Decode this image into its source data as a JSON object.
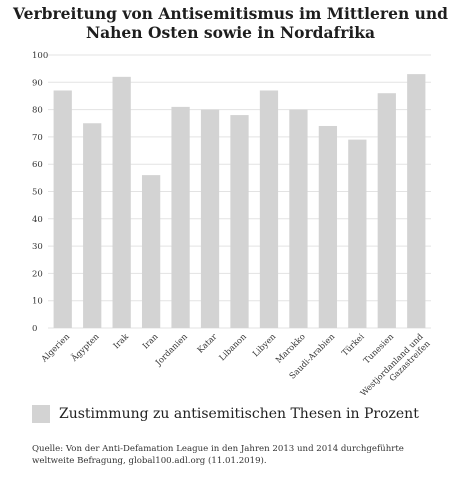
{
  "chart_data": {
    "type": "bar",
    "title_lines": [
      "Verbreitung von Antisemitismus im Mittleren und",
      "Nahen Osten sowie in Nordafrika"
    ],
    "categories": [
      "Algerien",
      "Ägypten",
      "Irak",
      "Iran",
      "Jordanien",
      "Katar",
      "Libanon",
      "Libyen",
      "Marokko",
      "Saudi-Arabien",
      "Türkei",
      "Tunesien",
      "Westjordanland und Gazastreifen"
    ],
    "category_label_lines": [
      [
        "Algerien"
      ],
      [
        "Ägypten"
      ],
      [
        "Irak"
      ],
      [
        "Iran"
      ],
      [
        "Jordanien"
      ],
      [
        "Katar"
      ],
      [
        "Libanon"
      ],
      [
        "Libyen"
      ],
      [
        "Marokko"
      ],
      [
        "Saudi-Arabien"
      ],
      [
        "Türkei"
      ],
      [
        "Tunesien"
      ],
      [
        "Westjordanland und",
        "Gazastreifen"
      ]
    ],
    "series": [
      {
        "name": "Zustimmung zu antisemitischen Thesen in Prozent",
        "values": [
          87,
          75,
          92,
          56,
          81,
          80,
          78,
          87,
          80,
          74,
          69,
          86,
          93
        ]
      }
    ],
    "ylim": [
      0,
      100
    ],
    "yticks": [
      "0",
      "10",
      "20",
      "30",
      "40",
      "50",
      "60",
      "70",
      "80",
      "90",
      "100"
    ],
    "grid": true,
    "legend_position": "bottom-left",
    "bar_color": "#d3d3d3",
    "grid_color": "#e3e3e3"
  },
  "source": "Quelle: Von der Anti-Defamation League in den Jahren 2013 und 2014 durchgeführte weltweite Befragung, global100.adl.org (11.01.2019)."
}
